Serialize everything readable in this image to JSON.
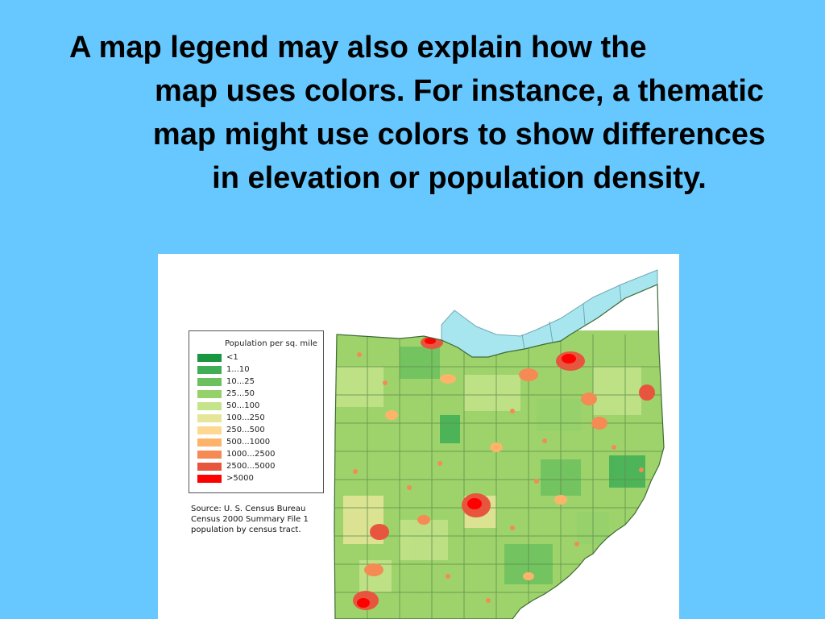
{
  "heading": {
    "line1": "A map legend may also explain how the",
    "rest": "map uses colors. For instance, a thematic map might use colors to show differences in elevation or population density."
  },
  "map": {
    "legend": {
      "title": "Population per sq. mile",
      "items": [
        {
          "label": "<1",
          "color": "#1a9641"
        },
        {
          "label": "1...10",
          "color": "#3fae56"
        },
        {
          "label": "10...25",
          "color": "#6cc15f"
        },
        {
          "label": "25...50",
          "color": "#95d16b"
        },
        {
          "label": "50...100",
          "color": "#c4e38a"
        },
        {
          "label": "100...250",
          "color": "#e6e69a"
        },
        {
          "label": "250...500",
          "color": "#fdd890"
        },
        {
          "label": "500...1000",
          "color": "#fdb46a"
        },
        {
          "label": "1000...2500",
          "color": "#f58a55"
        },
        {
          "label": "2500...5000",
          "color": "#e8553e"
        },
        {
          "label": ">5000",
          "color": "#ff0000"
        }
      ]
    },
    "source": {
      "line1": "Source: U. S. Census Bureau",
      "line2": "Census 2000 Summary File 1",
      "line3": "population by census tract."
    },
    "colors": {
      "lake": "#a8e6ef",
      "land_base": "#9ed36b",
      "county_border": "#5f8f4e"
    }
  }
}
